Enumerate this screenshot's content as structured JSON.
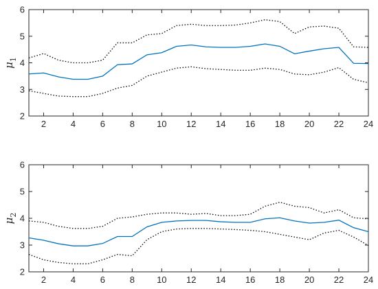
{
  "chart_data": [
    {
      "type": "line",
      "title": "",
      "xlabel": "",
      "ylabel": "μ",
      "ylabel_subscript": "1",
      "xlim": [
        1,
        24
      ],
      "ylim": [
        2,
        6
      ],
      "xticks": [
        2,
        4,
        6,
        8,
        10,
        12,
        14,
        16,
        18,
        20,
        22,
        24
      ],
      "yticks": [
        2,
        3,
        4,
        5,
        6
      ],
      "grid": false,
      "x": [
        1,
        2,
        3,
        4,
        5,
        6,
        7,
        8,
        9,
        10,
        11,
        12,
        13,
        14,
        15,
        16,
        17,
        18,
        19,
        20,
        21,
        22,
        23,
        24
      ],
      "series": [
        {
          "style": "solid",
          "color": "#0072bd",
          "values": [
            3.58,
            3.62,
            3.47,
            3.38,
            3.38,
            3.5,
            3.93,
            3.96,
            4.3,
            4.38,
            4.62,
            4.67,
            4.6,
            4.58,
            4.58,
            4.62,
            4.71,
            4.62,
            4.34,
            4.44,
            4.53,
            4.58,
            3.98,
            3.97
          ]
        },
        {
          "style": "dotted",
          "color": "#000000",
          "values": [
            4.18,
            4.35,
            4.1,
            4.0,
            4.0,
            4.1,
            4.75,
            4.75,
            5.05,
            5.1,
            5.4,
            5.45,
            5.4,
            5.4,
            5.42,
            5.5,
            5.62,
            5.55,
            5.1,
            5.35,
            5.38,
            5.3,
            4.6,
            4.58
          ]
        },
        {
          "style": "dotted",
          "color": "#000000",
          "values": [
            2.95,
            2.85,
            2.75,
            2.73,
            2.73,
            2.85,
            3.05,
            3.15,
            3.5,
            3.65,
            3.8,
            3.85,
            3.78,
            3.75,
            3.72,
            3.72,
            3.8,
            3.75,
            3.58,
            3.55,
            3.65,
            3.82,
            3.38,
            3.25
          ]
        }
      ]
    },
    {
      "type": "line",
      "title": "",
      "xlabel": "",
      "ylabel": "μ",
      "ylabel_subscript": "2",
      "xlim": [
        1,
        24
      ],
      "ylim": [
        2,
        6
      ],
      "xticks": [
        2,
        4,
        6,
        8,
        10,
        12,
        14,
        16,
        18,
        20,
        22,
        24
      ],
      "yticks": [
        2,
        3,
        4,
        5,
        6
      ],
      "grid": false,
      "x": [
        1,
        2,
        3,
        4,
        5,
        6,
        7,
        8,
        9,
        10,
        11,
        12,
        13,
        14,
        15,
        16,
        17,
        18,
        19,
        20,
        21,
        22,
        23,
        24
      ],
      "series": [
        {
          "style": "solid",
          "color": "#0072bd",
          "values": [
            3.27,
            3.18,
            3.05,
            2.97,
            2.97,
            3.06,
            3.32,
            3.32,
            3.68,
            3.85,
            3.9,
            3.92,
            3.92,
            3.87,
            3.85,
            3.85,
            3.98,
            4.02,
            3.9,
            3.82,
            3.85,
            3.93,
            3.65,
            3.5
          ]
        },
        {
          "style": "dotted",
          "color": "#000000",
          "values": [
            3.9,
            3.85,
            3.7,
            3.62,
            3.62,
            3.7,
            4.0,
            4.05,
            4.15,
            4.2,
            4.2,
            4.15,
            4.18,
            4.1,
            4.1,
            4.15,
            4.45,
            4.6,
            4.45,
            4.4,
            4.2,
            4.32,
            4.02,
            3.98
          ]
        },
        {
          "style": "dotted",
          "color": "#000000",
          "values": [
            2.65,
            2.45,
            2.35,
            2.3,
            2.3,
            2.45,
            2.65,
            2.6,
            3.2,
            3.5,
            3.6,
            3.62,
            3.62,
            3.6,
            3.58,
            3.55,
            3.5,
            3.4,
            3.3,
            3.2,
            3.45,
            3.55,
            3.3,
            2.98
          ]
        }
      ]
    }
  ]
}
